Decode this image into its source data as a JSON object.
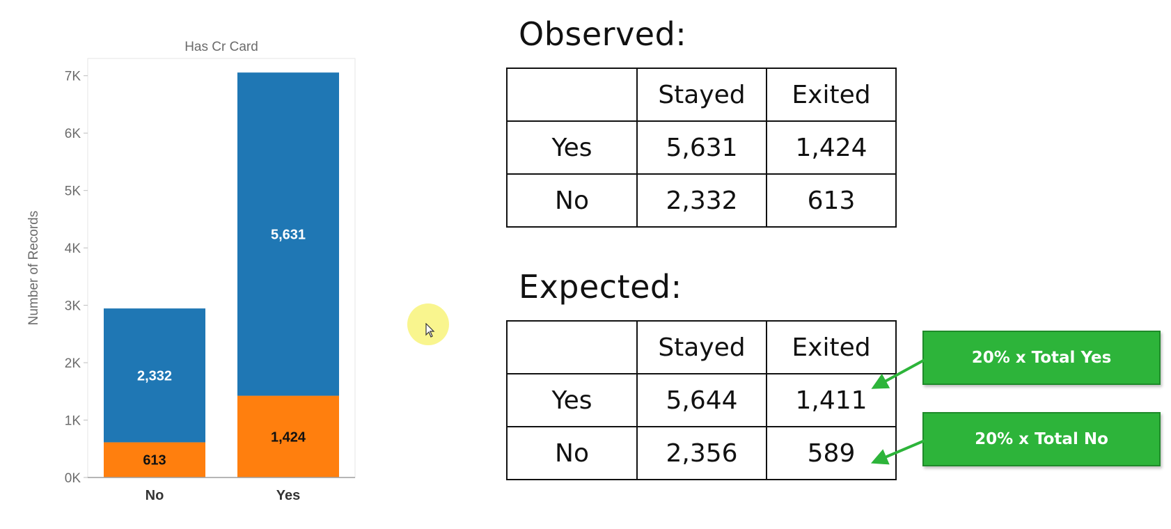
{
  "chart_data": {
    "type": "bar",
    "stacked": true,
    "title": "Has Cr Card",
    "ylabel": "Number of Records",
    "xlabel": "",
    "ylim": [
      0,
      7300
    ],
    "categories": [
      "No",
      "Yes"
    ],
    "yticks": [
      0,
      1000,
      2000,
      3000,
      4000,
      5000,
      6000,
      7000
    ],
    "ytick_labels": [
      "0K",
      "1K",
      "2K",
      "3K",
      "4K",
      "5K",
      "6K",
      "7K"
    ],
    "series": [
      {
        "color": "#ff7f0e",
        "label_color": "#111111",
        "values": [
          613,
          1424
        ],
        "labels": [
          "613",
          "1,424"
        ]
      },
      {
        "color": "#1f77b4",
        "label_color": "#ffffff",
        "values": [
          2332,
          5631
        ],
        "labels": [
          "2,332",
          "5,631"
        ]
      }
    ],
    "grid": false,
    "legend": "none"
  },
  "observed": {
    "title": "Observed:",
    "columns": [
      "",
      "Stayed",
      "Exited"
    ],
    "rows": [
      {
        "label": "Yes",
        "stayed": "5,631",
        "exited": "1,424"
      },
      {
        "label": "No",
        "stayed": "2,332",
        "exited": "613"
      }
    ]
  },
  "expected": {
    "title": "Expected:",
    "columns": [
      "",
      "Stayed",
      "Exited"
    ],
    "rows": [
      {
        "label": "Yes",
        "stayed": "5,644",
        "exited": "1,411"
      },
      {
        "label": "No",
        "stayed": "2,356",
        "exited": "589"
      }
    ]
  },
  "annotations": {
    "yes_note": "20% x Total Yes",
    "no_note": "20% x Total No",
    "note_color": "#2db43a",
    "cursor_highlight_color": "#f8f37a"
  }
}
